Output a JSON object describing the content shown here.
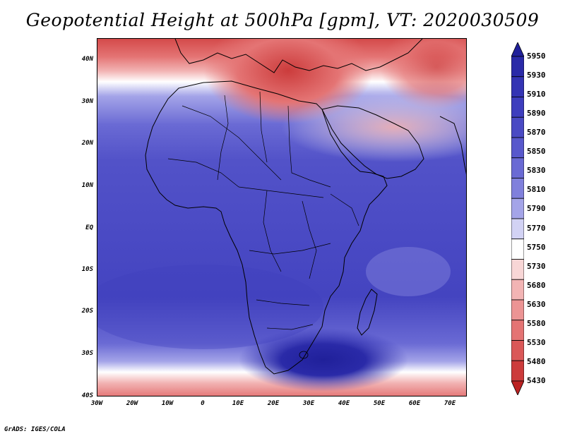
{
  "title": "Geopotential Height at 500hPa [gpm], VT: 2020030509",
  "credit": "GrADS: IGES/COLA",
  "lat_labels": [
    "40N",
    "30N",
    "20N",
    "10N",
    "EQ",
    "10S",
    "20S",
    "30S",
    "40S"
  ],
  "lon_labels": [
    "30W",
    "20W",
    "10W",
    "0",
    "10E",
    "20E",
    "30E",
    "40E",
    "50E",
    "60E",
    "70E"
  ],
  "colorbar": {
    "levels": [
      "5950",
      "5930",
      "5910",
      "5890",
      "5870",
      "5850",
      "5830",
      "5810",
      "5790",
      "5770",
      "5750",
      "5730",
      "5680",
      "5630",
      "5580",
      "5530",
      "5480",
      "5430"
    ],
    "colors": [
      "#20209a",
      "#2a2aa8",
      "#3434b4",
      "#3e3ebe",
      "#4a4ac4",
      "#5858cc",
      "#6a6ad4",
      "#8080dc",
      "#a4a4e8",
      "#d2d2f4",
      "#ffffff",
      "#f8d6d6",
      "#f2b4b4",
      "#ec9494",
      "#e47474",
      "#da5858",
      "#cc3c3c",
      "#bb2222"
    ]
  },
  "map": {
    "region": "Africa",
    "lon_range": [
      -30,
      75
    ],
    "lat_range": [
      -40,
      45
    ],
    "field": "500 hPa geopotential height",
    "colors": {
      "land_outline": "#000000",
      "high": "#3434b4",
      "low": "#cc3c3c"
    }
  }
}
